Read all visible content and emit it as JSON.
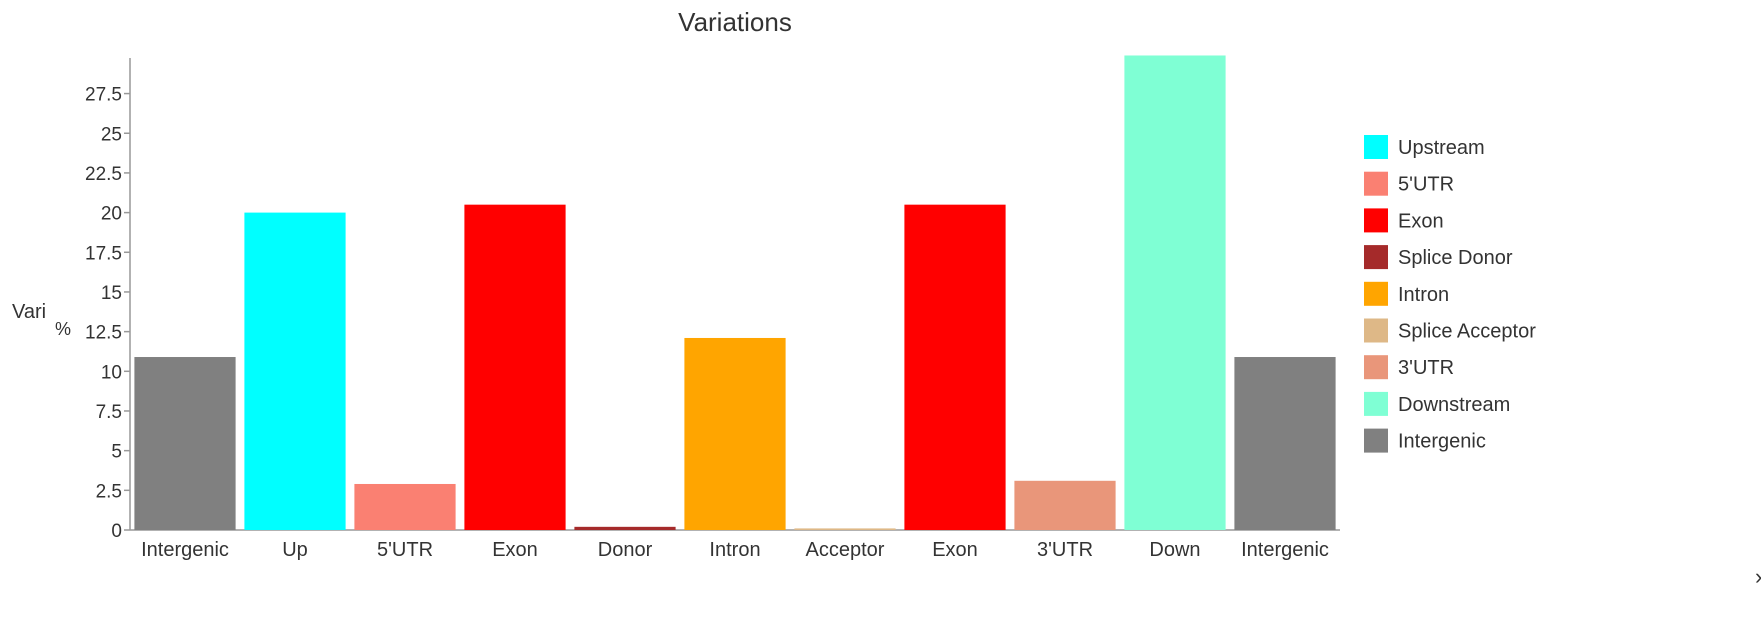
{
  "chart_data": {
    "type": "bar",
    "title": "Variations",
    "ylabel": "Vari",
    "ylabel_unit": "%",
    "xlabel": "",
    "ylim": [
      0,
      30
    ],
    "yticks": [
      0,
      2.5,
      5,
      7.5,
      10,
      12.5,
      15,
      17.5,
      20,
      22.5,
      25,
      27.5
    ],
    "ytick_labels": [
      "0",
      "2.5",
      "5",
      "7.5",
      "10",
      "12.5",
      "15",
      "17.5",
      "20",
      "22.5",
      "25",
      "27.5"
    ],
    "grid": false,
    "legend_position": "right",
    "categories": [
      "Intergenic",
      "Up",
      "5'UTR",
      "Exon",
      "Donor",
      "Intron",
      "Acceptor",
      "Exon",
      "3'UTR",
      "Down",
      "Intergenic"
    ],
    "values": [
      10.9,
      20.0,
      2.9,
      20.5,
      0.2,
      12.1,
      0.1,
      20.5,
      3.1,
      29.9,
      10.9
    ],
    "bar_colors": [
      "#808080",
      "#00ffff",
      "#fa8072",
      "#ff0000",
      "#a52a2a",
      "#ffa500",
      "#deb887",
      "#ff0000",
      "#e9967a",
      "#7fffd4",
      "#808080"
    ],
    "legend": [
      {
        "label": "Upstream",
        "color": "#00ffff"
      },
      {
        "label": "5'UTR",
        "color": "#fa8072"
      },
      {
        "label": "Exon",
        "color": "#ff0000"
      },
      {
        "label": "Splice Donor",
        "color": "#a52a2a"
      },
      {
        "label": "Intron",
        "color": "#ffa500"
      },
      {
        "label": "Splice Acceptor",
        "color": "#deb887"
      },
      {
        "label": "3'UTR",
        "color": "#e9967a"
      },
      {
        "label": "Downstream",
        "color": "#7fffd4"
      },
      {
        "label": "Intergenic",
        "color": "#808080"
      }
    ]
  }
}
